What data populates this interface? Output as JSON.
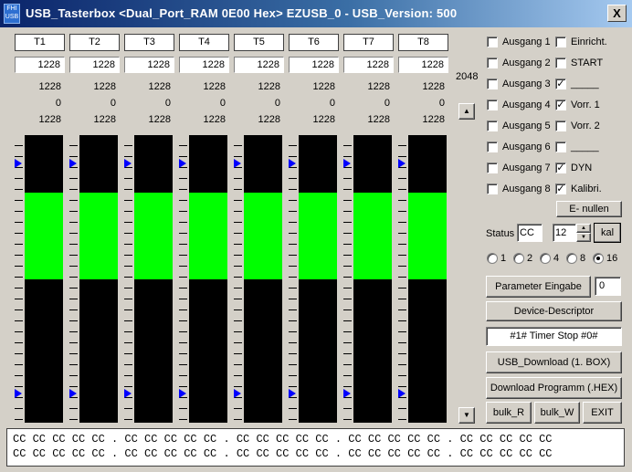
{
  "window": {
    "title": "USB_Tasterbox <Dual_Port_RAM 0E00 Hex> EZUSB_0 - USB_Version: 500",
    "icon_text": "FHI USB",
    "close_label": "X"
  },
  "channels": [
    {
      "name": "T1",
      "input": "1228",
      "val1": "1228",
      "val2": "0",
      "val3": "1228"
    },
    {
      "name": "T2",
      "input": "1228",
      "val1": "1228",
      "val2": "0",
      "val3": "1228"
    },
    {
      "name": "T3",
      "input": "1228",
      "val1": "1228",
      "val2": "0",
      "val3": "1228"
    },
    {
      "name": "T4",
      "input": "1228",
      "val1": "1228",
      "val2": "0",
      "val3": "1228"
    },
    {
      "name": "T5",
      "input": "1228",
      "val1": "1228",
      "val2": "0",
      "val3": "1228"
    },
    {
      "name": "T6",
      "input": "1228",
      "val1": "1228",
      "val2": "0",
      "val3": "1228"
    },
    {
      "name": "T7",
      "input": "1228",
      "val1": "1228",
      "val2": "0",
      "val3": "1228"
    },
    {
      "name": "T8",
      "input": "1228",
      "val1": "1228",
      "val2": "0",
      "val3": "1228"
    }
  ],
  "scale_max": "2048",
  "meter_level": {
    "top_fraction": 0.2,
    "bottom_fraction": 0.5
  },
  "outputs": [
    {
      "label": "Ausgang 1",
      "checked": false,
      "extra": "Einricht.",
      "extra_checked": false
    },
    {
      "label": "Ausgang 2",
      "checked": false,
      "extra": "START",
      "extra_checked": false
    },
    {
      "label": "Ausgang 3",
      "checked": false,
      "extra": "_____",
      "extra_checked": true
    },
    {
      "label": "Ausgang 4",
      "checked": false,
      "extra": "Vorr. 1",
      "extra_checked": true
    },
    {
      "label": "Ausgang 5",
      "checked": false,
      "extra": "Vorr. 2",
      "extra_checked": false
    },
    {
      "label": "Ausgang 6",
      "checked": false,
      "extra": "_____",
      "extra_checked": false
    },
    {
      "label": "Ausgang 7",
      "checked": false,
      "extra": "DYN",
      "extra_checked": true
    },
    {
      "label": "Ausgang 8",
      "checked": false,
      "extra": "Kalibri.",
      "extra_checked": true
    }
  ],
  "controls": {
    "e_nullen": "E- nullen",
    "status_label": "Status",
    "status_value": "CC",
    "spin_value": "12",
    "kal": "kal",
    "radios": [
      {
        "label": "1",
        "selected": false
      },
      {
        "label": "2",
        "selected": false
      },
      {
        "label": "4",
        "selected": false
      },
      {
        "label": "8",
        "selected": false
      },
      {
        "label": "16",
        "selected": true
      }
    ],
    "parameter_eingabe": "Parameter Eingabe",
    "parameter_value": "0",
    "device_descriptor": "Device-Descriptor",
    "timer_status": "#1# Timer Stop #0#",
    "usb_download": "USB_Download (1. BOX)",
    "download_programm": "Download Programm (.HEX)",
    "bulk_r": "bulk_R",
    "bulk_w": "bulk_W",
    "exit": "EXIT"
  },
  "hex_lines": [
    "CC CC CC CC CC . CC CC CC CC CC . CC CC CC CC CC . CC CC CC CC CC . CC CC CC CC CC",
    "CC CC CC CC CC . CC CC CC CC CC . CC CC CC CC CC . CC CC CC CC CC . CC CC CC CC CC"
  ]
}
